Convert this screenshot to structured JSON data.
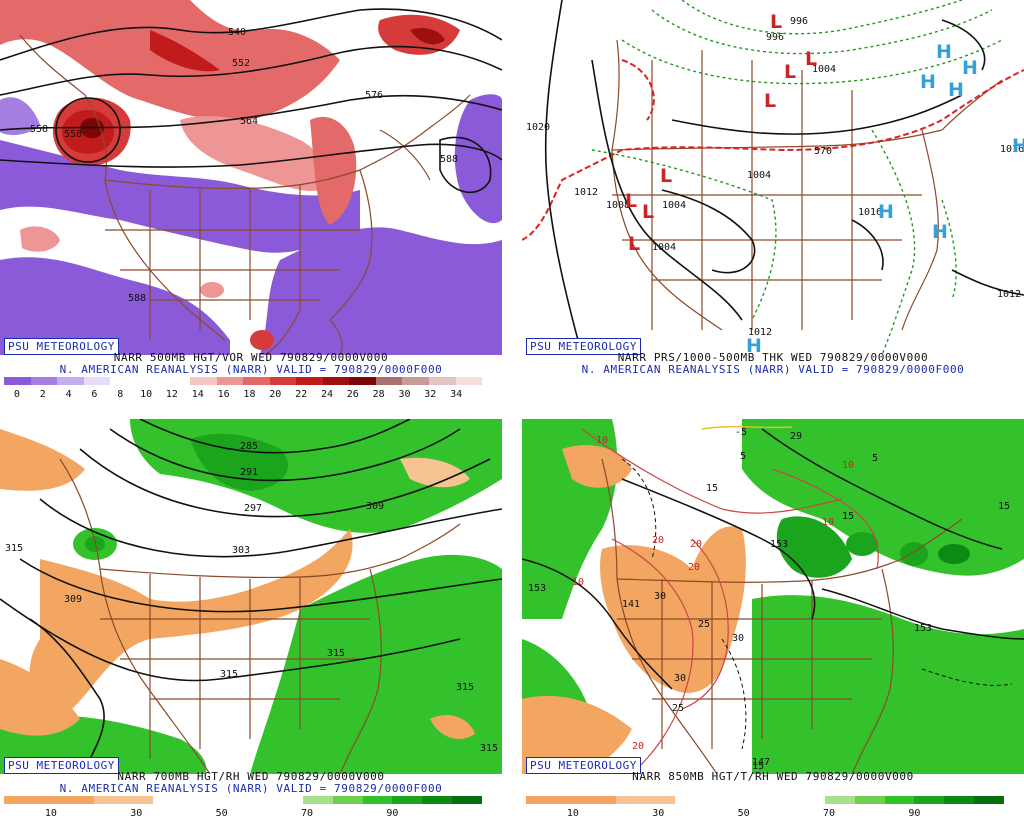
{
  "branding": "PSU METEOROLOGY",
  "subtitle": "N. AMERICAN REANALYSIS (NARR) VALID = 790829/0000F000",
  "panels": [
    {
      "id": "top-left",
      "title": "NARR 500MB HGT/VOR WED 790829/0000V000",
      "colorbar": {
        "colors": [
          "#8a5ad8",
          "#a47ee0",
          "#c5aef0",
          "#e7ddfa",
          "#ffffff",
          "#ffffff",
          "#ffffff",
          "#f6c4c4",
          "#ee9595",
          "#e46a6a",
          "#d63b3b",
          "#c21b1b",
          "#9e1010",
          "#7a0606",
          "#a8706e",
          "#c89a98",
          "#e4c4c2",
          "#f4dede"
        ],
        "ticks": [
          "0",
          "2",
          "4",
          "6",
          "8",
          "10",
          "12",
          "14",
          "16",
          "18",
          "20",
          "22",
          "24",
          "26",
          "28",
          "30",
          "32",
          "34"
        ]
      },
      "contour_labels": [
        "540",
        "552",
        "558",
        "564",
        "576",
        "588",
        "588",
        "558"
      ]
    },
    {
      "id": "top-right",
      "title": "NARR PRS/1000-500MB THK WED 790829/0000V000",
      "contour_labels": [
        "996",
        "996",
        "1004",
        "1004",
        "1004",
        "1004",
        "1008",
        "1012",
        "1012",
        "1012",
        "1016",
        "1016",
        "1020",
        "570"
      ]
    },
    {
      "id": "bottom-left",
      "title": "NARR 700MB HGT/RH WED 790829/0000V000",
      "colorbar": {
        "colors": [
          "#f2a661",
          "#f2a661",
          "#f2a661",
          "#f6c393",
          "#f6c393",
          "#ffffff",
          "#ffffff",
          "#ffffff",
          "#ffffff",
          "#ffffff",
          "#a6e08a",
          "#6fd050",
          "#33c22c",
          "#1aa51c",
          "#0c8a14",
          "#0a6e0e"
        ],
        "ticks": [
          "10",
          "30",
          "50",
          "70",
          "90"
        ]
      },
      "contour_labels": [
        "285",
        "291",
        "297",
        "303",
        "309",
        "309",
        "315",
        "315",
        "315",
        "315",
        "315"
      ]
    },
    {
      "id": "bottom-right",
      "title": "NARR 850MB HGT/T/RH WED 790829/0000V000",
      "colorbar": {
        "colors": [
          "#f2a661",
          "#f2a661",
          "#f2a661",
          "#f6c393",
          "#f6c393",
          "#ffffff",
          "#ffffff",
          "#ffffff",
          "#ffffff",
          "#ffffff",
          "#a6e08a",
          "#6fd050",
          "#33c22c",
          "#1aa51c",
          "#0c8a14",
          "#0a6e0e"
        ],
        "ticks": [
          "10",
          "30",
          "50",
          "70",
          "90"
        ]
      },
      "contour_labels": [
        "141",
        "147",
        "153",
        "153",
        "153",
        "-5",
        "29",
        "5",
        "5",
        "10",
        "10",
        "10",
        "10",
        "15",
        "15",
        "15",
        "15",
        "20",
        "20",
        "20",
        "20",
        "25",
        "25",
        "30",
        "30",
        "30"
      ]
    }
  ]
}
